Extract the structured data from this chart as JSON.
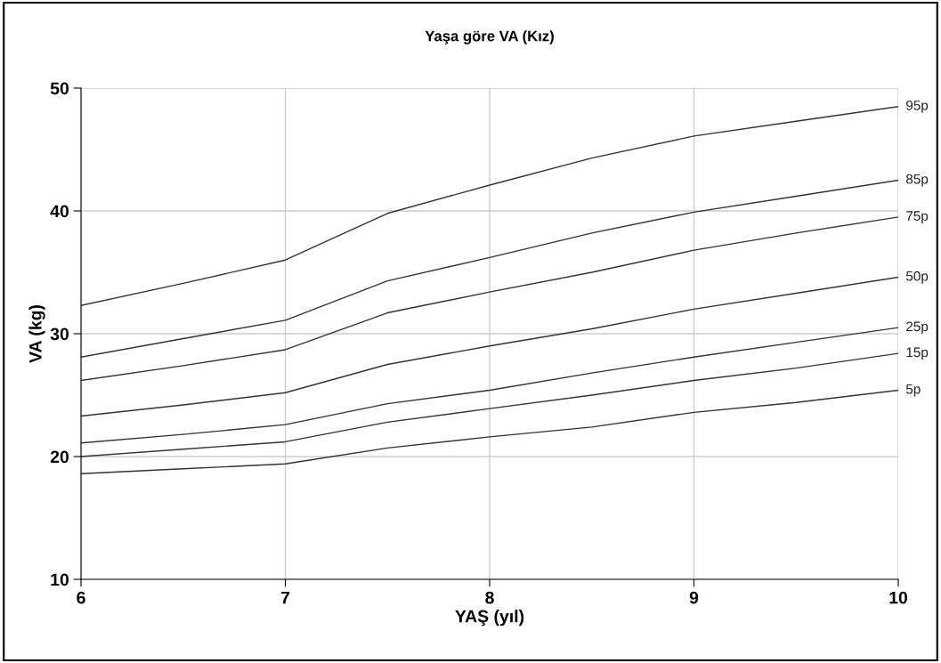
{
  "chart_data": {
    "type": "line",
    "title": "Yaşa göre VA (Kız)",
    "xlabel": "YAŞ (yıl)",
    "ylabel": "VA (kg)",
    "x": [
      6,
      6.5,
      7,
      7.5,
      8,
      8.5,
      9,
      9.5,
      10
    ],
    "xlim": [
      6,
      10
    ],
    "xticks": [
      6,
      7,
      8,
      9,
      10
    ],
    "ylim": [
      10,
      50
    ],
    "yticks": [
      10,
      20,
      30,
      40,
      50
    ],
    "grid": true,
    "legend": false,
    "marker": "none",
    "line_style": "solid",
    "series": [
      {
        "name": "95p",
        "color": "#333333",
        "values": [
          32.3,
          34.1,
          36.0,
          39.8,
          42.1,
          44.3,
          46.1,
          47.3,
          48.5
        ]
      },
      {
        "name": "85p",
        "color": "#333333",
        "values": [
          28.1,
          29.6,
          31.1,
          34.3,
          36.2,
          38.2,
          39.9,
          41.2,
          42.5
        ]
      },
      {
        "name": "75p",
        "color": "#333333",
        "values": [
          26.2,
          27.4,
          28.7,
          31.7,
          33.4,
          35.0,
          36.8,
          38.2,
          39.5
        ]
      },
      {
        "name": "50p",
        "color": "#333333",
        "values": [
          23.3,
          24.2,
          25.2,
          27.5,
          29.0,
          30.4,
          32.0,
          33.3,
          34.6
        ]
      },
      {
        "name": "25p",
        "color": "#333333",
        "values": [
          21.1,
          21.8,
          22.6,
          24.3,
          25.4,
          26.8,
          28.1,
          29.3,
          30.5
        ]
      },
      {
        "name": "15p",
        "color": "#333333",
        "values": [
          20.0,
          20.6,
          21.2,
          22.8,
          23.9,
          25.0,
          26.2,
          27.2,
          28.4
        ]
      },
      {
        "name": "5p",
        "color": "#333333",
        "values": [
          18.6,
          19.0,
          19.4,
          20.7,
          21.6,
          22.4,
          23.6,
          24.4,
          25.4
        ]
      }
    ]
  }
}
